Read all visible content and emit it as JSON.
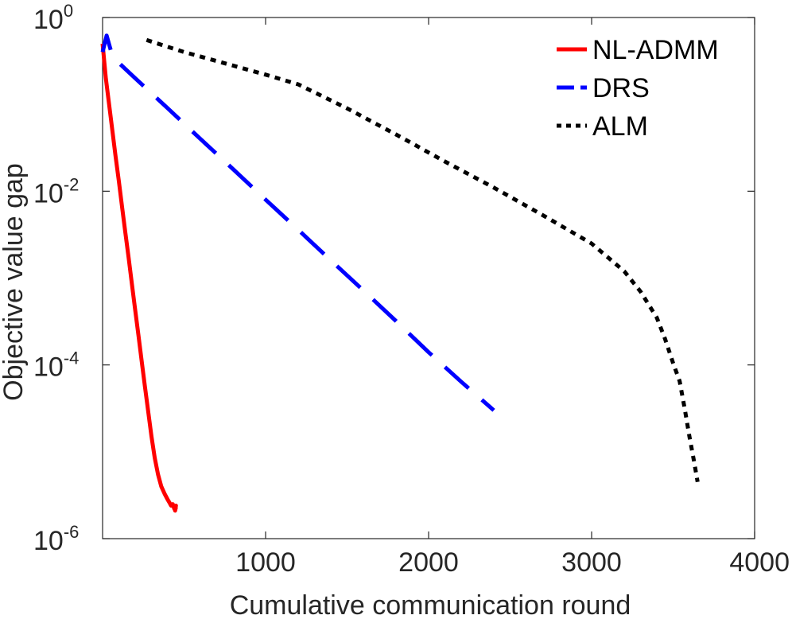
{
  "chart_data": {
    "type": "line",
    "title": "",
    "xlabel": "Cumulative communication round",
    "ylabel": "Objective value gap",
    "xlim": [
      0,
      4000
    ],
    "ylim": [
      1e-06,
      1
    ],
    "yscale": "log",
    "grid": false,
    "legend_position": "top-right",
    "x_ticks": [
      {
        "value": 1000,
        "label": "1000"
      },
      {
        "value": 2000,
        "label": "2000"
      },
      {
        "value": 3000,
        "label": "3000"
      },
      {
        "value": 4000,
        "label": "4000"
      }
    ],
    "y_ticks": [
      {
        "value": 1,
        "base": "10",
        "exp": "0"
      },
      {
        "value": 0.01,
        "base": "10",
        "exp": "-2"
      },
      {
        "value": 0.0001,
        "base": "10",
        "exp": "-4"
      },
      {
        "value": 1e-06,
        "base": "10",
        "exp": "-6"
      }
    ],
    "series": [
      {
        "name": "NL-ADMM",
        "color": "#ff0000",
        "style": "solid",
        "x": [
          0,
          20,
          40,
          60,
          80,
          100,
          120,
          140,
          160,
          180,
          200,
          220,
          240,
          260,
          280,
          300,
          320,
          340,
          360,
          380,
          400,
          410,
          420,
          430,
          440,
          450,
          445,
          450
        ],
        "y": [
          0.5,
          0.2,
          0.1,
          0.05,
          0.025,
          0.013,
          0.0065,
          0.0033,
          0.0017,
          0.00085,
          0.00043,
          0.00022,
          0.00011,
          5.6e-05,
          2.9e-05,
          1.5e-05,
          8.5e-06,
          5.5e-06,
          4e-06,
          3.3e-06,
          2.8e-06,
          2.6e-06,
          2.4e-06,
          2.5e-06,
          2.2e-06,
          2.4e-06,
          2.1e-06,
          2.3e-06
        ]
      },
      {
        "name": "DRS",
        "color": "#0000ff",
        "style": "dashed",
        "x": [
          0,
          25,
          50,
          100,
          200,
          400,
          600,
          800,
          1000,
          1200,
          1400,
          1600,
          1800,
          2000,
          2200,
          2400
        ],
        "y": [
          0.4,
          0.62,
          0.42,
          0.3,
          0.2,
          0.09,
          0.04,
          0.018,
          0.008,
          0.0036,
          0.0016,
          0.00072,
          0.00032,
          0.00014,
          6.4e-05,
          3e-05
        ]
      },
      {
        "name": "ALM",
        "color": "#000000",
        "style": "dotted",
        "x": [
          270,
          500,
          800,
          1000,
          1200,
          1500,
          1800,
          2100,
          2400,
          2700,
          3000,
          3200,
          3300,
          3400,
          3450,
          3500,
          3540,
          3570,
          3600,
          3630,
          3650
        ],
        "y": [
          0.55,
          0.4,
          0.28,
          0.22,
          0.17,
          0.09,
          0.045,
          0.022,
          0.011,
          0.0053,
          0.0025,
          0.0012,
          0.0007,
          0.00035,
          0.0002,
          0.000105,
          6.5e-05,
          3.2e-05,
          1.5e-05,
          7.5e-06,
          4.5e-06
        ]
      }
    ]
  }
}
